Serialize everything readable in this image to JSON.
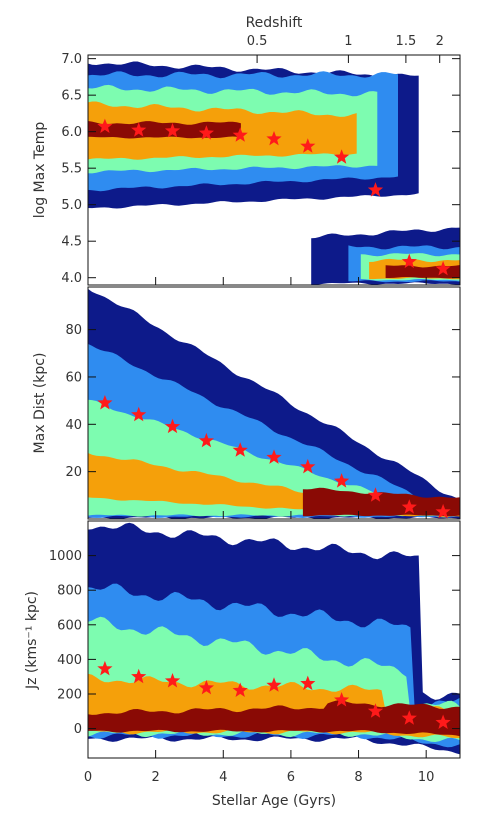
{
  "figure": {
    "top_axis_label": "Redshift",
    "top_axis_ticks": [
      {
        "label": "0.5",
        "age": 5.0
      },
      {
        "label": "1",
        "age": 7.7
      },
      {
        "label": "1.5",
        "age": 9.4
      },
      {
        "label": "2",
        "age": 10.4
      }
    ],
    "xlabel": "Stellar Age (Gyrs)",
    "xlim": [
      0,
      11
    ],
    "xticks": [
      0,
      2,
      4,
      6,
      8,
      10
    ]
  },
  "colors": {
    "levels": [
      "#0d1a8a",
      "#2f8cf0",
      "#7dfcb0",
      "#f5a00a",
      "#8a0a05"
    ],
    "marker": "#ff1a1a"
  },
  "chart_data": [
    {
      "type": "heatmap",
      "title": "",
      "xlabel": "",
      "ylabel": "log Max Temp",
      "xlim": [
        0,
        11
      ],
      "ylim": [
        3.9,
        7.05
      ],
      "yticks": [
        {
          "value": 4.0,
          "label": "4.0"
        },
        {
          "value": 4.5,
          "label": "4.5"
        },
        {
          "value": 5.0,
          "label": "5.0"
        },
        {
          "value": 5.5,
          "label": "5.5"
        },
        {
          "value": 6.0,
          "label": "6.0"
        },
        {
          "value": 6.5,
          "label": "6.5"
        },
        {
          "value": 7.0,
          "label": "7.0"
        }
      ],
      "markers": {
        "x": [
          0.5,
          1.5,
          2.5,
          3.5,
          4.5,
          5.5,
          6.5,
          7.5,
          8.5,
          9.5,
          10.5
        ],
        "y": [
          6.07,
          6.02,
          6.01,
          5.98,
          5.95,
          5.9,
          5.8,
          5.65,
          5.2,
          4.22,
          4.12
        ]
      }
    },
    {
      "type": "heatmap",
      "title": "",
      "xlabel": "",
      "ylabel": "Max Dist (kpc)",
      "xlim": [
        0,
        11
      ],
      "ylim": [
        0,
        98
      ],
      "yticks": [
        {
          "value": 20,
          "label": "20"
        },
        {
          "value": 40,
          "label": "40"
        },
        {
          "value": 60,
          "label": "60"
        },
        {
          "value": 80,
          "label": "80"
        }
      ],
      "markers": {
        "x": [
          0.5,
          1.5,
          2.5,
          3.5,
          4.5,
          5.5,
          6.5,
          7.5,
          8.5,
          9.5,
          10.5
        ],
        "y": [
          49,
          44,
          39,
          33,
          29,
          26,
          22,
          16,
          10,
          5,
          3
        ]
      }
    },
    {
      "type": "heatmap",
      "title": "",
      "xlabel": "Stellar Age (Gyrs)",
      "ylabel": "Jz (kms⁻¹ kpc)",
      "xlim": [
        0,
        11
      ],
      "ylim": [
        -170,
        1200
      ],
      "yticks": [
        {
          "value": 0,
          "label": "0"
        },
        {
          "value": 200,
          "label": "200"
        },
        {
          "value": 400,
          "label": "400"
        },
        {
          "value": 600,
          "label": "600"
        },
        {
          "value": 800,
          "label": "800"
        },
        {
          "value": 1000,
          "label": "1000"
        }
      ],
      "markers": {
        "x": [
          0.5,
          1.5,
          2.5,
          3.5,
          4.5,
          5.5,
          6.5,
          7.5,
          8.5,
          9.5,
          10.5
        ],
        "y": [
          345,
          300,
          275,
          235,
          220,
          250,
          260,
          165,
          100,
          60,
          35
        ]
      }
    }
  ]
}
